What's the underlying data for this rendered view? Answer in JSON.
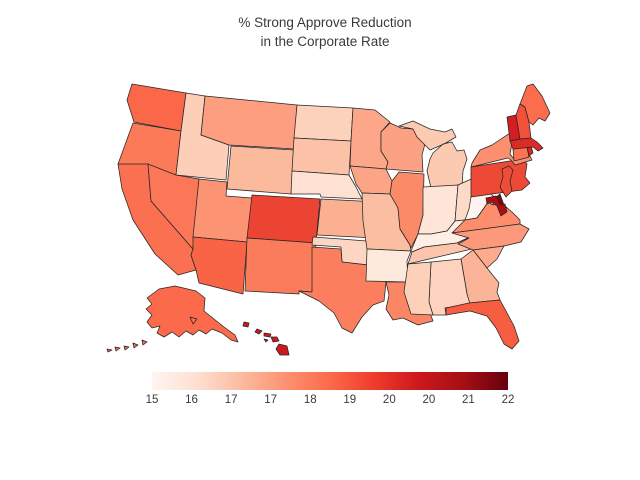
{
  "title": {
    "line1": "% Strong Approve Reduction",
    "line2": "in the Corporate Rate"
  },
  "colors": {
    "background": "#ffffff",
    "state_border": "#262626",
    "text": "#3a3a3a"
  },
  "chart_data": {
    "type": "choropleth",
    "region": "United States (Albers USA projection, AK and HI inset)",
    "title": "% Strong Approve Reduction in the Corporate Rate",
    "legend_position": "bottom",
    "colorbar": {
      "orientation": "horizontal",
      "min": 15,
      "max": 22,
      "tick_labels": [
        "15",
        "16",
        "17",
        "17",
        "18",
        "19",
        "20",
        "20",
        "21",
        "22"
      ],
      "tick_values": [
        15,
        15.8,
        16.6,
        17.3,
        18.1,
        18.9,
        19.7,
        20.4,
        21.2,
        22
      ],
      "colormap_name": "Reds",
      "gradient_stops": [
        "#fff5f0",
        "#fee0d2",
        "#fcbba1",
        "#fc9272",
        "#fb6a4a",
        "#ef3b2c",
        "#cb181d",
        "#a50f15",
        "#67000d"
      ]
    },
    "states": [
      {
        "code": "WA",
        "name": "Washington",
        "value": 19.0,
        "color": "#fa6849"
      },
      {
        "code": "OR",
        "name": "Oregon",
        "value": 18.5,
        "color": "#fb7a58"
      },
      {
        "code": "CA",
        "name": "California",
        "value": 18.7,
        "color": "#fb7050"
      },
      {
        "code": "NV",
        "name": "Nevada",
        "value": 18.5,
        "color": "#fb7757"
      },
      {
        "code": "ID",
        "name": "Idaho",
        "value": 16.3,
        "color": "#fdcfb9"
      },
      {
        "code": "MT",
        "name": "Montana",
        "value": 17.6,
        "color": "#fc9e7f"
      },
      {
        "code": "WY",
        "name": "Wyoming",
        "value": 16.9,
        "color": "#fcba9d"
      },
      {
        "code": "UT",
        "name": "Utah",
        "value": 17.8,
        "color": "#fc9474"
      },
      {
        "code": "CO",
        "name": "Colorado",
        "value": 19.8,
        "color": "#ec4433"
      },
      {
        "code": "AZ",
        "name": "Arizona",
        "value": 19.0,
        "color": "#f96346"
      },
      {
        "code": "NM",
        "name": "New Mexico",
        "value": 18.4,
        "color": "#fb7c5b"
      },
      {
        "code": "ND",
        "name": "North Dakota",
        "value": 16.2,
        "color": "#fdd2bd"
      },
      {
        "code": "SD",
        "name": "South Dakota",
        "value": 16.7,
        "color": "#fcc2a7"
      },
      {
        "code": "NE",
        "name": "Nebraska",
        "value": 15.8,
        "color": "#fee1d3"
      },
      {
        "code": "KS",
        "name": "Kansas",
        "value": 17.2,
        "color": "#fcb091"
      },
      {
        "code": "OK",
        "name": "Oklahoma",
        "value": 16.1,
        "color": "#fdd6c3"
      },
      {
        "code": "TX",
        "name": "Texas",
        "value": 18.3,
        "color": "#fb7f5e"
      },
      {
        "code": "MN",
        "name": "Minnesota",
        "value": 17.4,
        "color": "#fca78a"
      },
      {
        "code": "IA",
        "name": "Iowa",
        "value": 17.5,
        "color": "#fca486"
      },
      {
        "code": "MO",
        "name": "Missouri",
        "value": 16.8,
        "color": "#fcbea2"
      },
      {
        "code": "AR",
        "name": "Arkansas",
        "value": 15.5,
        "color": "#feeadd"
      },
      {
        "code": "LA",
        "name": "Louisiana",
        "value": 18.1,
        "color": "#fb8665"
      },
      {
        "code": "WI",
        "name": "Wisconsin",
        "value": 17.5,
        "color": "#fca183"
      },
      {
        "code": "IL",
        "name": "Illinois",
        "value": 18.0,
        "color": "#fb8a69"
      },
      {
        "code": "MI",
        "name": "Michigan",
        "value": 16.5,
        "color": "#fcc9b1"
      },
      {
        "code": "IN",
        "name": "Indiana",
        "value": 15.7,
        "color": "#fee5d8"
      },
      {
        "code": "OH",
        "name": "Ohio",
        "value": 16.0,
        "color": "#fdd9c7"
      },
      {
        "code": "KY",
        "name": "Kentucky",
        "value": 15.4,
        "color": "#ffeee5"
      },
      {
        "code": "TN",
        "name": "Tennessee",
        "value": 16.6,
        "color": "#fcc5ab"
      },
      {
        "code": "WV",
        "name": "West Virginia",
        "value": 15.0,
        "color": "#fff5f0"
      },
      {
        "code": "VA",
        "name": "Virginia",
        "value": 18.0,
        "color": "#fc8d6d"
      },
      {
        "code": "NC",
        "name": "North Carolina",
        "value": 17.7,
        "color": "#fc997a"
      },
      {
        "code": "SC",
        "name": "South Carolina",
        "value": 17.3,
        "color": "#fcab8d"
      },
      {
        "code": "GA",
        "name": "Georgia",
        "value": 17.1,
        "color": "#fcb499"
      },
      {
        "code": "AL",
        "name": "Alabama",
        "value": 16.2,
        "color": "#fdd3bf"
      },
      {
        "code": "MS",
        "name": "Mississippi",
        "value": 16.3,
        "color": "#fdd0ba"
      },
      {
        "code": "FL",
        "name": "Florida",
        "value": 19.2,
        "color": "#f75d41"
      },
      {
        "code": "PA",
        "name": "Pennsylvania",
        "value": 19.7,
        "color": "#ee4836"
      },
      {
        "code": "NY",
        "name": "New York",
        "value": 17.9,
        "color": "#fc8f6f"
      },
      {
        "code": "NJ",
        "name": "New Jersey",
        "value": 19.6,
        "color": "#f04d38"
      },
      {
        "code": "DE",
        "name": "Delaware",
        "value": 21.8,
        "color": "#800610"
      },
      {
        "code": "MD",
        "name": "Maryland",
        "value": 21.3,
        "color": "#a81016"
      },
      {
        "code": "CT",
        "name": "Connecticut",
        "value": 18.6,
        "color": "#fb7353"
      },
      {
        "code": "RI",
        "name": "Rhode Island",
        "value": 20.3,
        "color": "#d92622"
      },
      {
        "code": "MA",
        "name": "Massachusetts",
        "value": 20.2,
        "color": "#dd2c25"
      },
      {
        "code": "VT",
        "name": "Vermont",
        "value": 20.6,
        "color": "#d21e20"
      },
      {
        "code": "NH",
        "name": "New Hampshire",
        "value": 19.5,
        "color": "#f2503a"
      },
      {
        "code": "ME",
        "name": "Maine",
        "value": 18.8,
        "color": "#fb6d4d"
      },
      {
        "code": "AK",
        "name": "Alaska",
        "value": 18.9,
        "color": "#fb6b4b"
      },
      {
        "code": "HI",
        "name": "Hawaii",
        "value": 20.7,
        "color": "#ce1a1e"
      }
    ]
  }
}
